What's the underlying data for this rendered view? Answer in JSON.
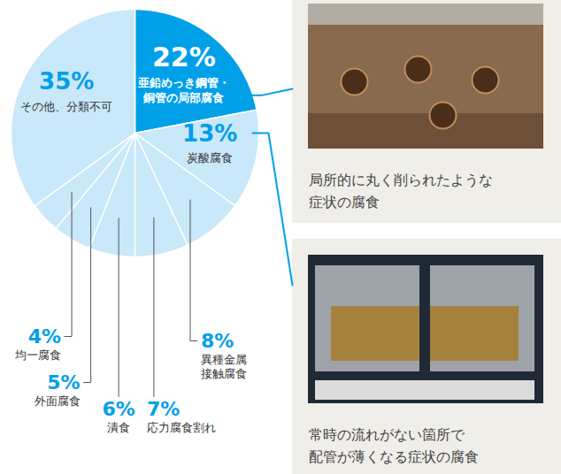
{
  "chart_data": {
    "type": "pie",
    "categories": [
      "亜鉛めっき鋼管・銅管の局部腐食",
      "炭酸腐食",
      "異種金属接触腐食",
      "応力腐食割れ",
      "潰食",
      "外面腐食",
      "均一腐食",
      "その他、分類不可"
    ],
    "values": [
      22,
      13,
      8,
      7,
      6,
      5,
      4,
      35
    ],
    "value_labels": [
      "22%",
      "13%",
      "8%",
      "7%",
      "6%",
      "5%",
      "4%",
      "35%"
    ],
    "colors": [
      "#00a0e9",
      "#c9e8f9",
      "#c9e8f9",
      "#c9e8f9",
      "#c9e8f9",
      "#c9e8f9",
      "#c9e8f9",
      "#c9e8f9"
    ],
    "data_labels": true,
    "annotations": [
      {
        "category": "亜鉛めっき鋼管・銅管の局部腐食",
        "text": "局所的に丸く削られたような症状の腐食"
      },
      {
        "category": "炭酸腐食",
        "text": "常時の流れがない箇所で配管が薄くなる症状の腐食"
      }
    ]
  }
}
